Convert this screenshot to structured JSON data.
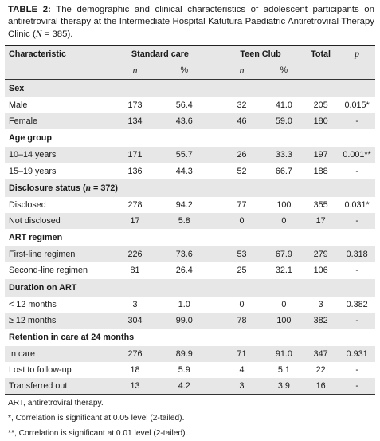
{
  "caption": {
    "label": "TABLE 2:",
    "text": " The demographic and clinical characteristics of adolescent participants on antiretroviral therapy at the Intermediate Hospital Katutura Paediatric Antiretroviral Therapy Clinic (",
    "n_symbol": "N",
    "n_value": " = 385)."
  },
  "header": {
    "characteristic": "Characteristic",
    "standard_care": "Standard care",
    "teen_club": "Teen Club",
    "total": "Total",
    "p": "p",
    "n": "n",
    "pct": "%"
  },
  "sections": [
    {
      "title": "Sex",
      "rows": [
        {
          "label": "Male",
          "sc_n": "173",
          "sc_pct": "56.4",
          "tc_n": "32",
          "tc_pct": "41.0",
          "total": "205",
          "p": "0.015*"
        },
        {
          "label": "Female",
          "sc_n": "134",
          "sc_pct": "43.6",
          "tc_n": "46",
          "tc_pct": "59.0",
          "total": "180",
          "p": "-"
        }
      ]
    },
    {
      "title": "Age group",
      "rows": [
        {
          "label": "10–14 years",
          "sc_n": "171",
          "sc_pct": "55.7",
          "tc_n": "26",
          "tc_pct": "33.3",
          "total": "197",
          "p": "0.001**"
        },
        {
          "label": "15–19 years",
          "sc_n": "136",
          "sc_pct": "44.3",
          "tc_n": "52",
          "tc_pct": "66.7",
          "total": "188",
          "p": "-"
        }
      ]
    },
    {
      "title": "Disclosure status (",
      "title_italic": "n",
      "title_end": " = 372)",
      "rows": [
        {
          "label": "Disclosed",
          "sc_n": "278",
          "sc_pct": "94.2",
          "tc_n": "77",
          "tc_pct": "100",
          "total": "355",
          "p": "0.031*"
        },
        {
          "label": "Not disclosed",
          "sc_n": "17",
          "sc_pct": "5.8",
          "tc_n": "0",
          "tc_pct": "0",
          "total": "17",
          "p": "-"
        }
      ]
    },
    {
      "title": "ART regimen",
      "rows": [
        {
          "label": "First-line regimen",
          "sc_n": "226",
          "sc_pct": "73.6",
          "tc_n": "53",
          "tc_pct": "67.9",
          "total": "279",
          "p": "0.318"
        },
        {
          "label": "Second-line regimen",
          "sc_n": "81",
          "sc_pct": "26.4",
          "tc_n": "25",
          "tc_pct": "32.1",
          "total": "106",
          "p": "-"
        }
      ]
    },
    {
      "title": "Duration on ART",
      "rows": [
        {
          "label": "< 12 months",
          "sc_n": "3",
          "sc_pct": "1.0",
          "tc_n": "0",
          "tc_pct": "0",
          "total": "3",
          "p": "0.382"
        },
        {
          "label": "≥ 12 months",
          "sc_n": "304",
          "sc_pct": "99.0",
          "tc_n": "78",
          "tc_pct": "100",
          "total": "382",
          "p": "-"
        }
      ]
    },
    {
      "title": "Retention in care at 24 months",
      "rows": [
        {
          "label": "In care",
          "sc_n": "276",
          "sc_pct": "89.9",
          "tc_n": "71",
          "tc_pct": "91.0",
          "total": "347",
          "p": "0.931"
        },
        {
          "label": "Lost to follow-up",
          "sc_n": "18",
          "sc_pct": "5.9",
          "tc_n": "4",
          "tc_pct": "5.1",
          "total": "22",
          "p": "-"
        },
        {
          "label": "Transferred out",
          "sc_n": "13",
          "sc_pct": "4.2",
          "tc_n": "3",
          "tc_pct": "3.9",
          "total": "16",
          "p": "-"
        }
      ]
    }
  ],
  "footnotes": [
    "ART, antiretroviral therapy.",
    "*, Correlation is significant at 0.05 level (2-tailed).",
    "**, Correlation is significant at 0.01 level (2-tailed)."
  ]
}
